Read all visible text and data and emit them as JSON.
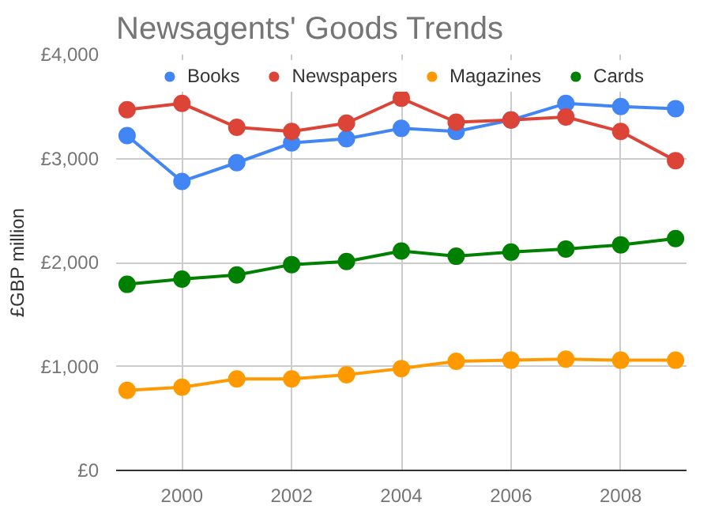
{
  "chart_data": {
    "type": "line",
    "title": "Newsagents' Goods Trends",
    "ylabel": "£GBP million",
    "x": [
      1999,
      2000,
      2001,
      2002,
      2003,
      2004,
      2005,
      2006,
      2007,
      2008,
      2009
    ],
    "series": [
      {
        "name": "Books",
        "color": "#4285f4",
        "values": [
          3220,
          2780,
          2960,
          3150,
          3190,
          3290,
          3260,
          3370,
          3530,
          3500,
          3480
        ]
      },
      {
        "name": "Newspapers",
        "color": "#db4437",
        "values": [
          3470,
          3530,
          3300,
          3260,
          3340,
          3580,
          3350,
          3370,
          3400,
          3260,
          2980
        ]
      },
      {
        "name": "Magazines",
        "color": "#ff9900",
        "values": [
          770,
          800,
          880,
          880,
          920,
          980,
          1050,
          1060,
          1070,
          1060,
          1060
        ]
      },
      {
        "name": "Cards",
        "color": "#008000",
        "values": [
          1790,
          1840,
          1880,
          1980,
          2010,
          2110,
          2060,
          2100,
          2130,
          2170,
          2230
        ]
      }
    ],
    "xlim": [
      1998.8,
      2009.2
    ],
    "xticks": [
      2000,
      2002,
      2004,
      2006,
      2008
    ],
    "ylim": [
      0,
      4000
    ],
    "yticks": [
      {
        "value": 0,
        "label": "£0"
      },
      {
        "value": 1000,
        "label": "£1,000"
      },
      {
        "value": 2000,
        "label": "£2,000"
      },
      {
        "value": 3000,
        "label": "£3,000"
      },
      {
        "value": 4000,
        "label": "£4,000"
      }
    ],
    "grid": true,
    "legend": "top",
    "marker": "circle",
    "line_style": "solid"
  }
}
